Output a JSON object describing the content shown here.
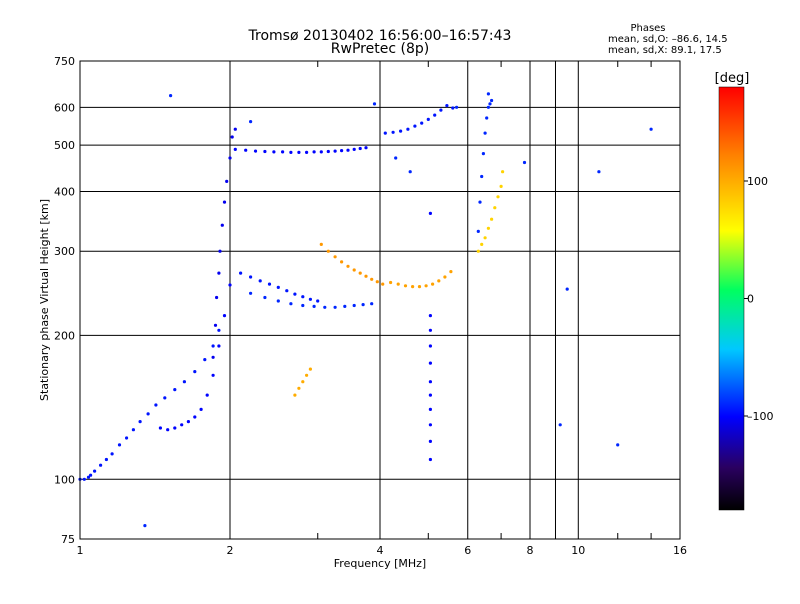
{
  "header": {
    "title_line1": "Tromsø 20130402 16:56:00–16:57:43",
    "title_line2": "RwPretec (8p)",
    "phases_title": "Phases",
    "phases_line1": "mean, sd,O: –86.6, 14.5",
    "phases_line2": "mean, sd,X:  89.1, 17.5"
  },
  "chart_data": {
    "type": "scatter",
    "xlabel": "Frequency [MHz]",
    "ylabel": "Stationary phase Virtual Height [km]",
    "x_scale": "log",
    "y_scale": "log",
    "xlim": [
      1,
      16
    ],
    "ylim": [
      75,
      750
    ],
    "x_ticks": [
      1,
      2,
      4,
      6,
      8,
      9,
      10,
      16
    ],
    "x_tick_labels": [
      "1",
      "2",
      "4",
      "6",
      "8",
      "",
      "10",
      "16"
    ],
    "x_minor_ticks": [
      3,
      5,
      7,
      12,
      14
    ],
    "y_ticks": [
      75,
      100,
      200,
      300,
      400,
      500,
      600,
      750
    ],
    "y_tick_labels": [
      "75",
      "100",
      "200",
      "300",
      "400",
      "500",
      "600",
      "750"
    ],
    "grid": true,
    "colorbar": {
      "label": "[deg]",
      "range": [
        -180,
        180
      ],
      "ticks": [
        100,
        0,
        -100
      ],
      "tick_labels": [
        "100",
        "0",
        "–100"
      ]
    },
    "series": [
      {
        "phase_deg": -95,
        "x": [
          1.0,
          1.02,
          1.04,
          1.05,
          1.07,
          1.1,
          1.13,
          1.16,
          1.2,
          1.24,
          1.28,
          1.32,
          1.37,
          1.42,
          1.48,
          1.55,
          1.62,
          1.7,
          1.78,
          1.85,
          1.9
        ],
        "y": [
          100,
          100,
          101,
          102,
          104,
          107,
          110,
          113,
          118,
          122,
          127,
          132,
          137,
          143,
          148,
          154,
          160,
          168,
          178,
          190,
          205
        ]
      },
      {
        "phase_deg": -100,
        "x": [
          1.45,
          1.5,
          1.55,
          1.6,
          1.65,
          1.7,
          1.75,
          1.8,
          1.85,
          1.9,
          1.95,
          2.0
        ],
        "y": [
          128,
          127,
          128,
          130,
          132,
          135,
          140,
          150,
          165,
          190,
          220,
          255
        ]
      },
      {
        "phase_deg": -105,
        "x": [
          1.85,
          1.87,
          1.88,
          1.9,
          1.91,
          1.93,
          1.95,
          1.97,
          2.0,
          2.02,
          2.05
        ],
        "y": [
          180,
          210,
          240,
          270,
          300,
          340,
          380,
          420,
          470,
          520,
          540
        ]
      },
      {
        "phase_deg": -100,
        "x": [
          2.05,
          2.15,
          2.25,
          2.35,
          2.45,
          2.55,
          2.65,
          2.75,
          2.85,
          2.95,
          3.05,
          3.15,
          3.25,
          3.35,
          3.45,
          3.55,
          3.65,
          3.75
        ],
        "y": [
          490,
          488,
          486,
          485,
          484,
          484,
          483,
          483,
          483,
          484,
          484,
          485,
          486,
          487,
          488,
          490,
          492,
          494
        ]
      },
      {
        "phase_deg": -95,
        "x": [
          2.1,
          2.2,
          2.3,
          2.4,
          2.5,
          2.6,
          2.7,
          2.8,
          2.9,
          3.0
        ],
        "y": [
          270,
          265,
          260,
          256,
          252,
          248,
          244,
          241,
          238,
          236
        ]
      },
      {
        "phase_deg": -90,
        "x": [
          2.2,
          2.35,
          2.5,
          2.65,
          2.8,
          2.95,
          3.1,
          3.25,
          3.4,
          3.55,
          3.7,
          3.85
        ],
        "y": [
          245,
          240,
          236,
          233,
          231,
          230,
          229,
          229,
          230,
          231,
          232,
          233
        ]
      },
      {
        "phase_deg": 110,
        "x": [
          3.05,
          3.15,
          3.25,
          3.35,
          3.45,
          3.55,
          3.65,
          3.75,
          3.85,
          3.95,
          4.05
        ],
        "y": [
          310,
          300,
          292,
          285,
          279,
          274,
          270,
          266,
          262,
          259,
          256
        ]
      },
      {
        "phase_deg": 105,
        "x": [
          4.2,
          4.35,
          4.5,
          4.65,
          4.8,
          4.95,
          5.1,
          5.25,
          5.4,
          5.55
        ],
        "y": [
          258,
          256,
          254,
          253,
          253,
          254,
          256,
          260,
          265,
          272
        ]
      },
      {
        "phase_deg": -95,
        "x": [
          4.1,
          4.25,
          4.4,
          4.55,
          4.7,
          4.85,
          5.0,
          5.15,
          5.3,
          5.45,
          5.6
        ],
        "y": [
          530,
          532,
          535,
          540,
          548,
          556,
          566,
          578,
          592,
          605,
          598
        ]
      },
      {
        "phase_deg": -100,
        "x": [
          5.05,
          5.05,
          5.05,
          5.05,
          5.05,
          5.05,
          5.05,
          5.05,
          5.05,
          5.05,
          5.05
        ],
        "y": [
          110,
          120,
          130,
          140,
          150,
          160,
          175,
          190,
          205,
          220,
          360
        ]
      },
      {
        "phase_deg": 80,
        "x": [
          6.3,
          6.4,
          6.5,
          6.6,
          6.7,
          6.8,
          6.9,
          7.0,
          7.05
        ],
        "y": [
          300,
          310,
          320,
          335,
          350,
          370,
          390,
          410,
          440
        ]
      },
      {
        "phase_deg": -90,
        "x": [
          6.3,
          6.35,
          6.4,
          6.45,
          6.5,
          6.55,
          6.6,
          6.65,
          6.7
        ],
        "y": [
          330,
          380,
          430,
          480,
          530,
          570,
          600,
          610,
          620
        ]
      },
      {
        "phase_deg": 100,
        "x": [
          2.7,
          2.75,
          2.8,
          2.85,
          2.9
        ],
        "y": [
          150,
          155,
          160,
          165,
          170
        ]
      },
      {
        "phase_deg": -90,
        "x": [
          1.35,
          1.52,
          2.2,
          3.9,
          4.3,
          4.6,
          5.7,
          6.6,
          7.8,
          9.2,
          9.5,
          11.0,
          12.0,
          14.0
        ],
        "y": [
          80,
          635,
          560,
          610,
          470,
          440,
          600,
          640,
          460,
          130,
          250,
          440,
          118,
          540
        ]
      }
    ]
  }
}
